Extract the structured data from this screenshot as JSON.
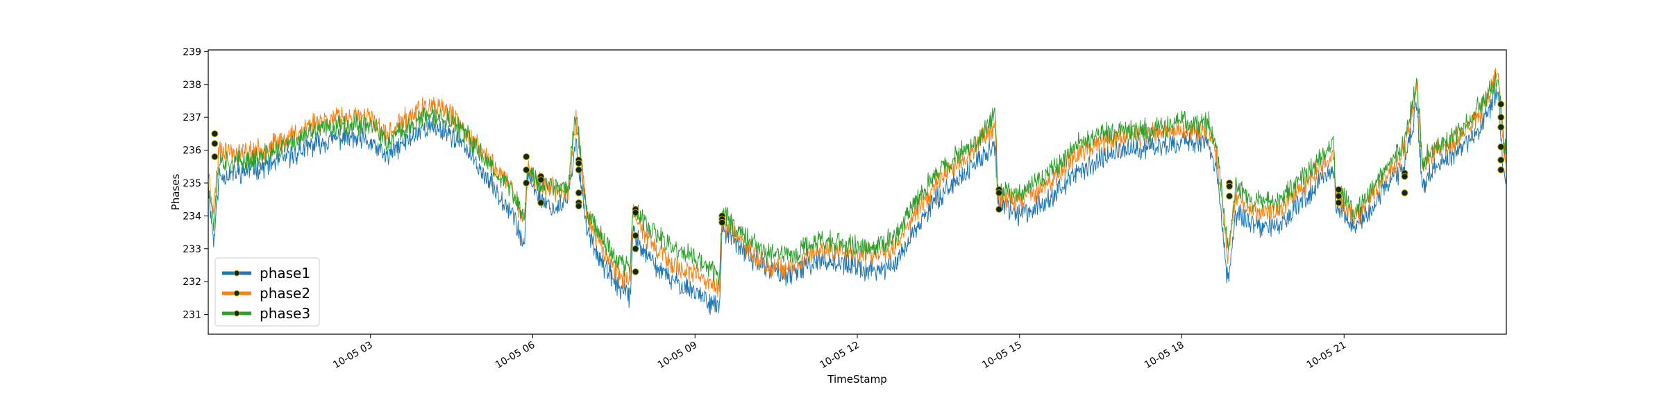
{
  "chart_data": {
    "type": "line",
    "xlabel": "TimeStamp",
    "ylabel": "Phases",
    "x_range": [
      0.0,
      24.0
    ],
    "ylim": [
      230.4,
      239.05
    ],
    "y_ticks": [
      231,
      232,
      233,
      234,
      235,
      236,
      237,
      238,
      239
    ],
    "x_ticks": [
      {
        "hour": 3,
        "label": "10-05 03"
      },
      {
        "hour": 6,
        "label": "10-05 06"
      },
      {
        "hour": 9,
        "label": "10-05 09"
      },
      {
        "hour": 12,
        "label": "10-05 12"
      },
      {
        "hour": 15,
        "label": "10-05 15"
      },
      {
        "hour": 18,
        "label": "10-05 18"
      },
      {
        "hour": 21,
        "label": "10-05 21"
      }
    ],
    "grid": false,
    "legend_position": "lower-left",
    "series": [
      {
        "name": "phase1",
        "color": "#1f77b4",
        "trend": [
          [
            0.0,
            234.9
          ],
          [
            0.1,
            233.2
          ],
          [
            0.2,
            235.2
          ],
          [
            0.5,
            235.3
          ],
          [
            1.0,
            235.5
          ],
          [
            1.5,
            235.8
          ],
          [
            2.0,
            236.2
          ],
          [
            2.5,
            236.4
          ],
          [
            3.0,
            236.2
          ],
          [
            3.3,
            235.8
          ],
          [
            3.6,
            236.2
          ],
          [
            4.0,
            236.7
          ],
          [
            4.4,
            236.6
          ],
          [
            4.8,
            236.0
          ],
          [
            5.2,
            235.0
          ],
          [
            5.6,
            234.2
          ],
          [
            5.85,
            233.0
          ],
          [
            5.9,
            235.3
          ],
          [
            6.1,
            234.6
          ],
          [
            6.4,
            234.2
          ],
          [
            6.65,
            234.5
          ],
          [
            6.8,
            236.2
          ],
          [
            7.0,
            233.6
          ],
          [
            7.3,
            232.5
          ],
          [
            7.6,
            231.8
          ],
          [
            7.8,
            231.5
          ],
          [
            7.85,
            233.5
          ],
          [
            8.1,
            232.8
          ],
          [
            8.5,
            232.1
          ],
          [
            9.0,
            231.7
          ],
          [
            9.45,
            231.2
          ],
          [
            9.5,
            233.6
          ],
          [
            9.8,
            233.1
          ],
          [
            10.3,
            232.4
          ],
          [
            10.8,
            232.2
          ],
          [
            11.3,
            232.7
          ],
          [
            11.8,
            232.5
          ],
          [
            12.3,
            232.3
          ],
          [
            12.7,
            232.5
          ],
          [
            13.0,
            233.4
          ],
          [
            13.5,
            234.6
          ],
          [
            14.0,
            235.3
          ],
          [
            14.3,
            235.8
          ],
          [
            14.55,
            236.1
          ],
          [
            14.6,
            234.4
          ],
          [
            15.0,
            234.0
          ],
          [
            15.5,
            234.5
          ],
          [
            16.0,
            235.2
          ],
          [
            16.5,
            235.8
          ],
          [
            17.0,
            236.0
          ],
          [
            17.5,
            236.1
          ],
          [
            18.0,
            236.3
          ],
          [
            18.5,
            236.2
          ],
          [
            18.65,
            235.3
          ],
          [
            18.85,
            232.0
          ],
          [
            19.0,
            234.1
          ],
          [
            19.4,
            233.6
          ],
          [
            19.8,
            233.7
          ],
          [
            20.3,
            234.6
          ],
          [
            20.8,
            235.5
          ],
          [
            20.85,
            234.4
          ],
          [
            21.2,
            233.6
          ],
          [
            21.6,
            234.5
          ],
          [
            22.1,
            235.5
          ],
          [
            22.35,
            237.4
          ],
          [
            22.45,
            234.8
          ],
          [
            22.6,
            235.4
          ],
          [
            23.0,
            235.8
          ],
          [
            23.5,
            236.6
          ],
          [
            23.85,
            237.8
          ],
          [
            23.95,
            235.2
          ],
          [
            24.0,
            235.2
          ]
        ]
      },
      {
        "name": "phase2",
        "color": "#ff7f0e",
        "trend": [
          [
            0.0,
            235.3
          ],
          [
            0.1,
            234.2
          ],
          [
            0.2,
            236.1
          ],
          [
            0.5,
            235.9
          ],
          [
            1.0,
            236.0
          ],
          [
            1.5,
            236.4
          ],
          [
            2.0,
            236.9
          ],
          [
            2.5,
            237.0
          ],
          [
            3.0,
            237.0
          ],
          [
            3.3,
            236.4
          ],
          [
            3.6,
            236.9
          ],
          [
            4.0,
            237.3
          ],
          [
            4.4,
            237.2
          ],
          [
            4.8,
            236.5
          ],
          [
            5.2,
            235.7
          ],
          [
            5.6,
            234.9
          ],
          [
            5.85,
            233.8
          ],
          [
            5.9,
            235.5
          ],
          [
            6.1,
            235.0
          ],
          [
            6.4,
            234.8
          ],
          [
            6.65,
            234.7
          ],
          [
            6.8,
            237.0
          ],
          [
            7.0,
            234.0
          ],
          [
            7.3,
            233.0
          ],
          [
            7.6,
            232.2
          ],
          [
            7.8,
            232.0
          ],
          [
            7.85,
            234.0
          ],
          [
            8.1,
            233.4
          ],
          [
            8.5,
            232.6
          ],
          [
            9.0,
            232.2
          ],
          [
            9.45,
            231.8
          ],
          [
            9.5,
            233.8
          ],
          [
            9.8,
            233.3
          ],
          [
            10.3,
            232.5
          ],
          [
            10.8,
            232.4
          ],
          [
            11.3,
            233.0
          ],
          [
            11.8,
            232.9
          ],
          [
            12.3,
            232.8
          ],
          [
            12.7,
            233.1
          ],
          [
            13.0,
            233.9
          ],
          [
            13.5,
            235.1
          ],
          [
            14.0,
            235.8
          ],
          [
            14.3,
            236.3
          ],
          [
            14.55,
            236.8
          ],
          [
            14.6,
            234.6
          ],
          [
            15.0,
            234.5
          ],
          [
            15.5,
            234.9
          ],
          [
            16.0,
            235.8
          ],
          [
            16.5,
            236.3
          ],
          [
            17.0,
            236.4
          ],
          [
            17.5,
            236.5
          ],
          [
            18.0,
            236.6
          ],
          [
            18.5,
            236.6
          ],
          [
            18.65,
            235.8
          ],
          [
            18.85,
            232.8
          ],
          [
            19.0,
            234.6
          ],
          [
            19.4,
            234.1
          ],
          [
            19.8,
            234.2
          ],
          [
            20.3,
            235.0
          ],
          [
            20.8,
            235.9
          ],
          [
            20.85,
            234.6
          ],
          [
            21.2,
            233.9
          ],
          [
            21.6,
            234.8
          ],
          [
            22.1,
            235.9
          ],
          [
            22.35,
            237.9
          ],
          [
            22.45,
            235.4
          ],
          [
            22.6,
            235.9
          ],
          [
            23.0,
            236.2
          ],
          [
            23.5,
            237.1
          ],
          [
            23.85,
            238.4
          ],
          [
            23.95,
            236.0
          ],
          [
            24.0,
            235.7
          ]
        ]
      },
      {
        "name": "phase3",
        "color": "#2ca02c",
        "trend": [
          [
            0.0,
            235.1
          ],
          [
            0.1,
            233.8
          ],
          [
            0.2,
            235.7
          ],
          [
            0.5,
            235.6
          ],
          [
            1.0,
            235.8
          ],
          [
            1.5,
            236.2
          ],
          [
            2.0,
            236.6
          ],
          [
            2.5,
            236.8
          ],
          [
            3.0,
            236.8
          ],
          [
            3.3,
            236.2
          ],
          [
            3.6,
            236.6
          ],
          [
            4.0,
            237.0
          ],
          [
            4.4,
            237.0
          ],
          [
            4.8,
            236.4
          ],
          [
            5.2,
            235.6
          ],
          [
            5.6,
            234.8
          ],
          [
            5.85,
            233.9
          ],
          [
            5.9,
            235.5
          ],
          [
            6.1,
            235.0
          ],
          [
            6.4,
            234.9
          ],
          [
            6.65,
            234.9
          ],
          [
            6.8,
            237.2
          ],
          [
            7.0,
            234.2
          ],
          [
            7.3,
            233.3
          ],
          [
            7.6,
            232.6
          ],
          [
            7.8,
            232.4
          ],
          [
            7.85,
            234.2
          ],
          [
            8.1,
            233.7
          ],
          [
            8.5,
            233.1
          ],
          [
            9.0,
            232.7
          ],
          [
            9.45,
            232.2
          ],
          [
            9.5,
            234.1
          ],
          [
            9.8,
            233.6
          ],
          [
            10.3,
            232.9
          ],
          [
            10.8,
            232.8
          ],
          [
            11.3,
            233.3
          ],
          [
            11.8,
            233.1
          ],
          [
            12.3,
            233.0
          ],
          [
            12.7,
            233.4
          ],
          [
            13.0,
            234.2
          ],
          [
            13.5,
            235.4
          ],
          [
            14.0,
            236.0
          ],
          [
            14.3,
            236.5
          ],
          [
            14.55,
            237.1
          ],
          [
            14.6,
            234.8
          ],
          [
            15.0,
            234.7
          ],
          [
            15.5,
            235.2
          ],
          [
            16.0,
            236.1
          ],
          [
            16.5,
            236.5
          ],
          [
            17.0,
            236.6
          ],
          [
            17.5,
            236.6
          ],
          [
            18.0,
            236.9
          ],
          [
            18.5,
            236.8
          ],
          [
            18.65,
            236.0
          ],
          [
            18.85,
            233.0
          ],
          [
            19.0,
            234.9
          ],
          [
            19.4,
            234.4
          ],
          [
            19.8,
            234.5
          ],
          [
            20.3,
            235.3
          ],
          [
            20.8,
            236.2
          ],
          [
            20.85,
            234.8
          ],
          [
            21.2,
            234.1
          ],
          [
            21.6,
            235.0
          ],
          [
            22.1,
            236.1
          ],
          [
            22.35,
            238.1
          ],
          [
            22.45,
            235.6
          ],
          [
            22.6,
            236.0
          ],
          [
            23.0,
            236.3
          ],
          [
            23.5,
            237.3
          ],
          [
            23.85,
            238.2
          ],
          [
            23.95,
            236.2
          ],
          [
            24.0,
            235.9
          ]
        ]
      }
    ],
    "markers": [
      {
        "x": 0.12,
        "y": 236.5
      },
      {
        "x": 0.12,
        "y": 236.2
      },
      {
        "x": 0.12,
        "y": 235.8
      },
      {
        "x": 5.88,
        "y": 235.8
      },
      {
        "x": 5.88,
        "y": 235.4
      },
      {
        "x": 5.88,
        "y": 235.0
      },
      {
        "x": 6.15,
        "y": 235.2
      },
      {
        "x": 6.15,
        "y": 235.1
      },
      {
        "x": 6.15,
        "y": 234.4
      },
      {
        "x": 6.85,
        "y": 235.7
      },
      {
        "x": 6.85,
        "y": 235.6
      },
      {
        "x": 6.85,
        "y": 235.4
      },
      {
        "x": 6.85,
        "y": 234.7
      },
      {
        "x": 6.85,
        "y": 234.4
      },
      {
        "x": 6.85,
        "y": 234.3
      },
      {
        "x": 7.9,
        "y": 234.2
      },
      {
        "x": 7.9,
        "y": 234.1
      },
      {
        "x": 7.9,
        "y": 233.4
      },
      {
        "x": 7.9,
        "y": 233.0
      },
      {
        "x": 7.9,
        "y": 232.3
      },
      {
        "x": 9.5,
        "y": 234.0
      },
      {
        "x": 9.5,
        "y": 233.9
      },
      {
        "x": 9.5,
        "y": 233.8
      },
      {
        "x": 14.62,
        "y": 234.8
      },
      {
        "x": 14.62,
        "y": 234.7
      },
      {
        "x": 14.62,
        "y": 234.2
      },
      {
        "x": 18.88,
        "y": 235.0
      },
      {
        "x": 18.88,
        "y": 234.9
      },
      {
        "x": 18.88,
        "y": 234.6
      },
      {
        "x": 20.9,
        "y": 234.8
      },
      {
        "x": 20.9,
        "y": 234.6
      },
      {
        "x": 20.9,
        "y": 234.4
      },
      {
        "x": 22.12,
        "y": 235.3
      },
      {
        "x": 22.12,
        "y": 235.2
      },
      {
        "x": 22.12,
        "y": 234.7
      },
      {
        "x": 23.9,
        "y": 237.4
      },
      {
        "x": 23.9,
        "y": 237.0
      },
      {
        "x": 23.9,
        "y": 236.7
      },
      {
        "x": 23.9,
        "y": 236.1
      },
      {
        "x": 23.9,
        "y": 235.7
      },
      {
        "x": 23.9,
        "y": 235.4
      }
    ]
  }
}
